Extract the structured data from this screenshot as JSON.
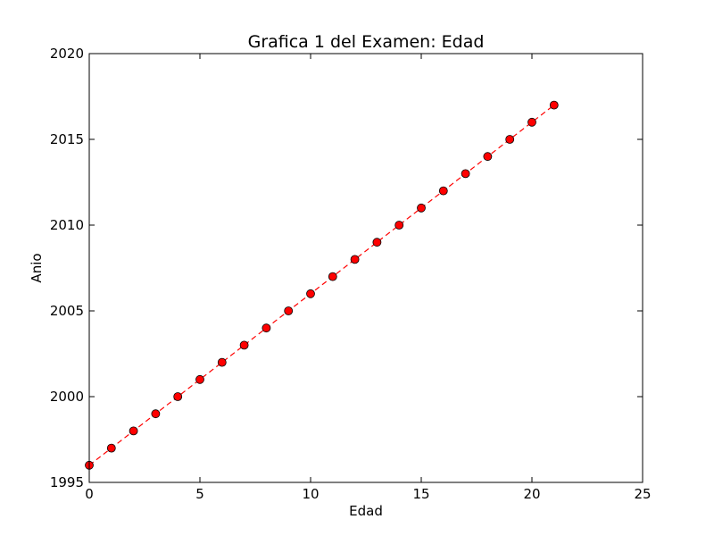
{
  "chart_data": {
    "type": "line",
    "title": "Grafica 1 del Examen: Edad",
    "xlabel": "Edad",
    "ylabel": "Anio",
    "xlim": [
      0,
      25
    ],
    "ylim": [
      1995,
      2020
    ],
    "xticks": [
      "0",
      "5",
      "10",
      "15",
      "20",
      "25"
    ],
    "yticks": [
      "1995",
      "2000",
      "2005",
      "2010",
      "2015",
      "2020"
    ],
    "grid": false,
    "series": [
      {
        "color": "#ff0000",
        "line_style": "dashed",
        "marker": "circle",
        "x": [
          0,
          1,
          2,
          3,
          4,
          5,
          6,
          7,
          8,
          9,
          10,
          11,
          12,
          13,
          14,
          15,
          16,
          17,
          18,
          19,
          20,
          21
        ],
        "y": [
          1996,
          1997,
          1998,
          1999,
          2000,
          2001,
          2002,
          2003,
          2004,
          2005,
          2006,
          2007,
          2008,
          2009,
          2010,
          2011,
          2012,
          2013,
          2014,
          2015,
          2016,
          2017
        ]
      }
    ]
  }
}
